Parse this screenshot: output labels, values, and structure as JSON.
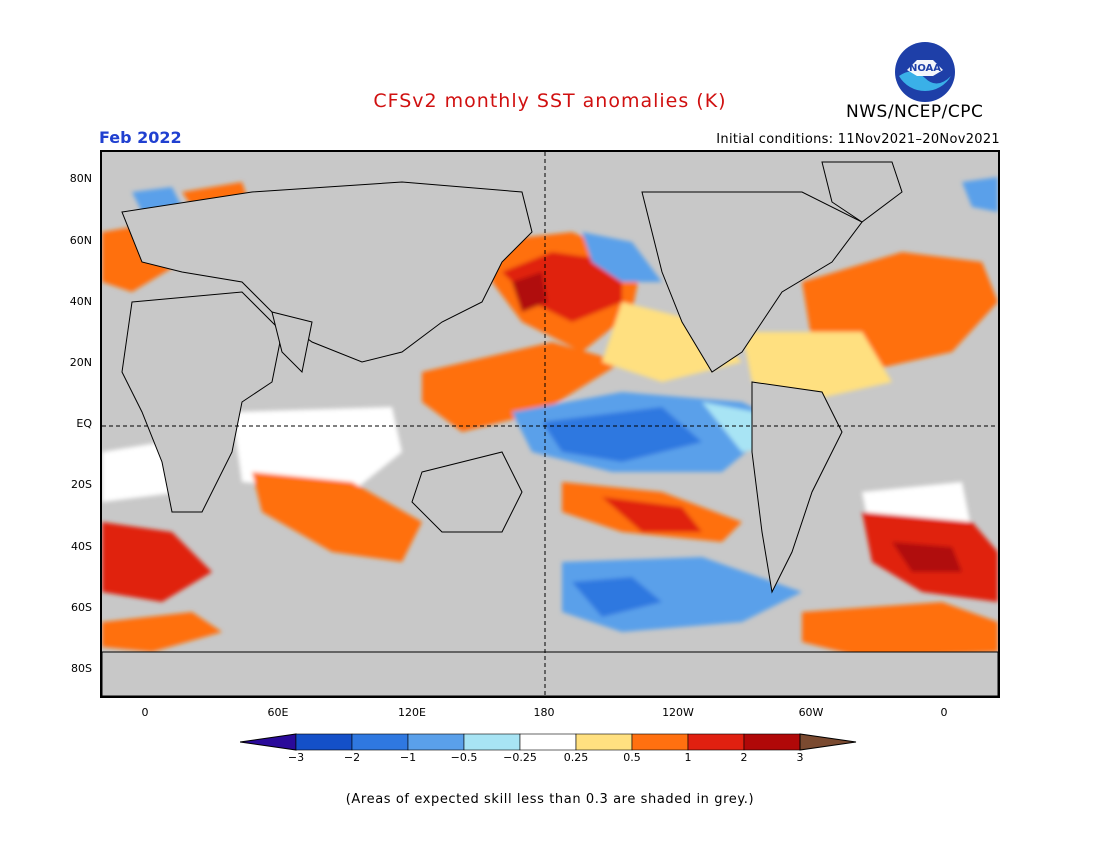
{
  "title": "CFSv2 monthly SST anomalies (K)",
  "agency": "NWS/NCEP/CPC",
  "logo_text": "NOAA",
  "forecast_month": "Feb 2022",
  "initial_conditions": "Initial conditions: 11Nov2021–20Nov2021",
  "footnote": "(Areas of expected skill less than 0.3 are shaded in grey.)",
  "lat_labels": [
    "80N",
    "60N",
    "40N",
    "20N",
    "EQ",
    "20S",
    "40S",
    "60S",
    "80S"
  ],
  "lon_labels": [
    "0",
    "60E",
    "120E",
    "180",
    "120W",
    "60W",
    "0"
  ],
  "colorbar": {
    "labels": [
      "−3",
      "−2",
      "−1",
      "−0.5",
      "−0.25",
      "0.25",
      "0.5",
      "1",
      "2",
      "3"
    ],
    "colors": [
      "#2a0a9a",
      "#1450c8",
      "#2f78e0",
      "#5aa0ea",
      "#a8e4f4",
      "#ffffff",
      "#ffe080",
      "#ff7010",
      "#e02010",
      "#b00808",
      "#7a4a30"
    ]
  },
  "map_colors": {
    "land": "#c8c8c8",
    "low_skill": "#c8c8c8",
    "neutral": "#ffffff",
    "warm_weak": "#ffe080",
    "warm": "#ff7010",
    "warm_strong": "#e02010",
    "warm_extreme": "#b00808",
    "cool_weak": "#a8e4f4",
    "cool": "#5aa0ea",
    "cool_strong": "#2f78e0",
    "cool_extreme": "#1450c8"
  }
}
